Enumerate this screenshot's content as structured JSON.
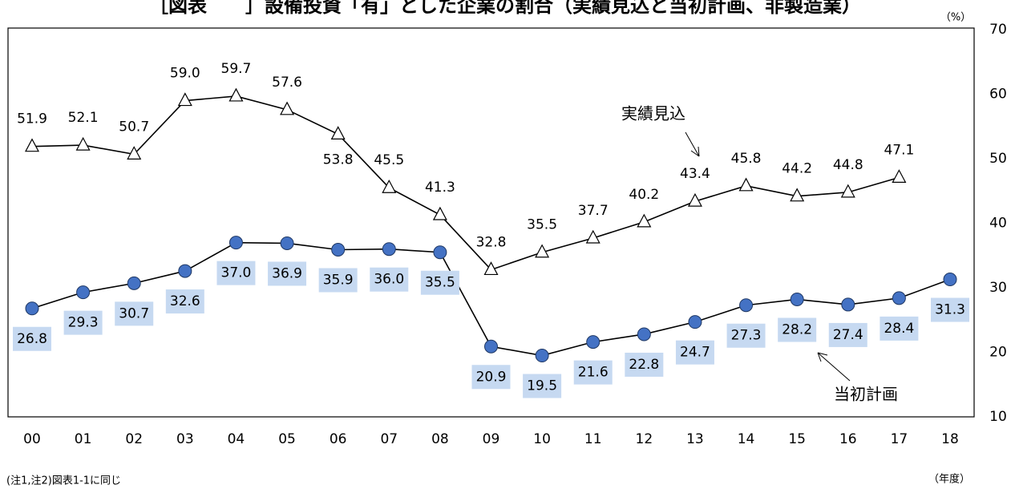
{
  "chart_data": {
    "type": "line",
    "title": "［図表　　］設備投資「有」とした企業の割合（実績見込と当初計画、非製造業）",
    "unit_label": "（%）",
    "x_label": "（年度）",
    "note": "(注1,注2)図表1-1に同じ",
    "categories": [
      "00",
      "01",
      "02",
      "03",
      "04",
      "05",
      "06",
      "07",
      "08",
      "09",
      "10",
      "11",
      "12",
      "13",
      "14",
      "15",
      "16",
      "17",
      "18"
    ],
    "series": [
      {
        "name": "実績見込",
        "color": "#000000",
        "marker": "triangle",
        "values": [
          51.9,
          52.1,
          50.7,
          59.0,
          59.7,
          57.6,
          53.8,
          45.5,
          41.3,
          32.8,
          35.5,
          37.7,
          40.2,
          43.4,
          45.8,
          44.2,
          44.8,
          47.1,
          null
        ],
        "value_labels": [
          "51.9",
          "52.1",
          "50.7",
          "59.0",
          "59.7",
          "57.6",
          "53.8",
          "45.5",
          "41.3",
          "32.8",
          "35.5",
          "37.7",
          "40.2",
          "43.4",
          "45.8",
          "44.2",
          "44.8",
          "47.1",
          null
        ]
      },
      {
        "name": "当初計画",
        "color": "#4472c4",
        "marker": "circle",
        "values": [
          26.8,
          29.3,
          30.7,
          32.6,
          37.0,
          36.9,
          35.9,
          36.0,
          35.5,
          20.9,
          19.5,
          21.6,
          22.8,
          24.7,
          27.3,
          28.2,
          27.4,
          28.4,
          31.3
        ],
        "value_labels": [
          "26.8",
          "29.3",
          "30.7",
          "32.6",
          "37.0",
          "36.9",
          "35.9",
          "36.0",
          "35.5",
          "20.9",
          "19.5",
          "21.6",
          "22.8",
          "24.7",
          "27.3",
          "28.2",
          "27.4",
          "28.4",
          "31.3"
        ]
      }
    ],
    "ylim": [
      10,
      70
    ],
    "yticks": [
      10,
      20,
      30,
      40,
      50,
      60,
      70
    ],
    "y_axis_side": "right",
    "grid": false
  }
}
